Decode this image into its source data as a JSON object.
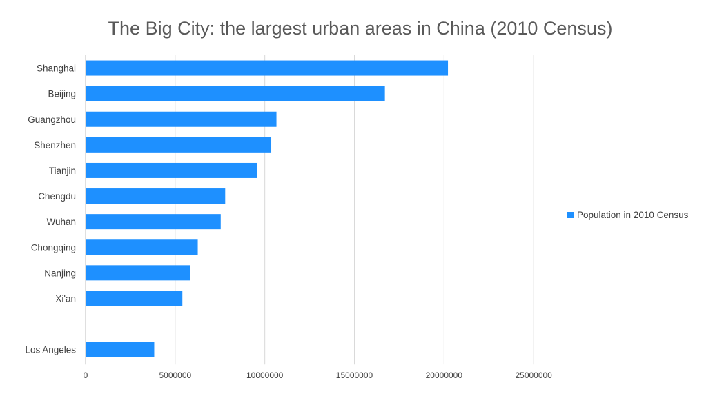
{
  "chart_data": {
    "type": "bar",
    "orientation": "horizontal",
    "title": "The Big City: the largest urban areas in China (2010 Census)",
    "xlabel": "",
    "ylabel": "",
    "categories": [
      "Shanghai",
      "Beijing",
      "Guangzhou",
      "Shenzhen",
      "Tianjin",
      "Chengdu",
      "Wuhan",
      "Chongqing",
      "Nanjing",
      "Xi'an",
      "",
      "Los Angeles"
    ],
    "series": [
      {
        "name": "Population in 2010 Census",
        "color": "#1e90ff",
        "values": [
          20220000,
          16700000,
          10650000,
          10360000,
          9580000,
          7790000,
          7540000,
          6260000,
          5830000,
          5400000,
          null,
          3830000
        ]
      }
    ],
    "xlim": [
      0,
      30000000
    ],
    "xticks": [
      0,
      5000000,
      10000000,
      15000000,
      20000000,
      25000000
    ],
    "xtick_labels": [
      "0",
      "5000000",
      "10000000",
      "15000000",
      "20000000",
      "25000000"
    ],
    "grid": "vertical",
    "legend_position": "right"
  }
}
